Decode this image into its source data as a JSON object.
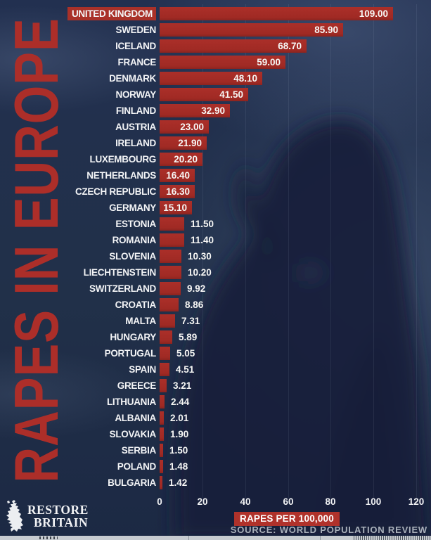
{
  "title": "RAPES IN EUROPE",
  "chart_data": {
    "type": "bar",
    "orientation": "horizontal",
    "categories": [
      "UNITED KINGDOM",
      "SWEDEN",
      "ICELAND",
      "FRANCE",
      "DENMARK",
      "NORWAY",
      "FINLAND",
      "AUSTRIA",
      "IRELAND",
      "LUXEMBOURG",
      "NETHERLANDS",
      "CZECH REPUBLIC",
      "GERMANY",
      "ESTONIA",
      "ROMANIA",
      "SLOVENIA",
      "LIECHTENSTEIN",
      "SWITZERLAND",
      "CROATIA",
      "MALTA",
      "HUNGARY",
      "PORTUGAL",
      "SPAIN",
      "GREECE",
      "LITHUANIA",
      "ALBANIA",
      "SLOVAKIA",
      "SERBIA",
      "POLAND",
      "BULGARIA"
    ],
    "values": [
      109.0,
      85.9,
      68.7,
      59.0,
      48.1,
      41.5,
      32.9,
      23.0,
      21.9,
      20.2,
      16.4,
      16.3,
      15.1,
      11.5,
      11.4,
      10.3,
      10.2,
      9.92,
      8.86,
      7.31,
      5.89,
      5.05,
      4.51,
      3.21,
      2.44,
      2.01,
      1.9,
      1.5,
      1.48,
      1.42
    ],
    "value_labels": [
      "109.00",
      "85.90",
      "68.70",
      "59.00",
      "48.10",
      "41.50",
      "32.90",
      "23.00",
      "21.90",
      "20.20",
      "16.40",
      "16.30",
      "15.10",
      "11.50",
      "11.40",
      "10.30",
      "10.20",
      "9.92",
      "8.86",
      "7.31",
      "5.89",
      "5.05",
      "4.51",
      "3.21",
      "2.44",
      "2.01",
      "1.90",
      "1.50",
      "1.48",
      "1.42"
    ],
    "highlight_category": "UNITED KINGDOM",
    "xlabel": "RAPES PER 100,000",
    "xlim": [
      0,
      120
    ],
    "xticks": [
      "0",
      "20",
      "40",
      "60",
      "80",
      "100",
      "120"
    ],
    "grid": "vertical-faint",
    "legend": "none"
  },
  "source": {
    "label": "SOURCE: WORLD POPULATION REVIEW"
  },
  "logo": {
    "line1": "RESTORE",
    "line2": "BRITAIN",
    "icon": "great-britain-map-icon"
  },
  "colors": {
    "background": "#213049",
    "bar": "#a32c26",
    "title_text": "#ac2e29",
    "highlight_label_bg": "#a93129",
    "label_text": "#f3f4f6",
    "axis_text": "#f1f2f4",
    "xlabel_bg": "#b0322b",
    "source_text": "#a9b0bb"
  }
}
